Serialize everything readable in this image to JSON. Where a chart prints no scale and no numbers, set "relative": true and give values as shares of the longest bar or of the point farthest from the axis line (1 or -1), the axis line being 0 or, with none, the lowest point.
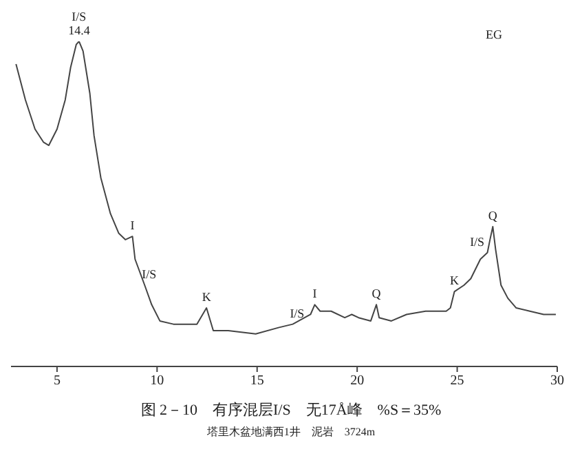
{
  "chart_data": {
    "type": "line",
    "relative": true,
    "title": "图 2－10　有序混层I/S　无17Å峰　%S＝35%",
    "subtitle": "塔里木盆地满西1井　泥岩　3724m",
    "xlim": [
      2.7,
      30
    ],
    "xticks": [
      5,
      10,
      15,
      20,
      25,
      30
    ],
    "tick_labels": "x",
    "grid": false,
    "series": [
      {
        "color": "#444444",
        "x": [
          2.95,
          3.42,
          3.9,
          4.32,
          4.59,
          5.0,
          5.41,
          5.68,
          5.96,
          6.1,
          6.3,
          6.64,
          6.85,
          7.19,
          7.67,
          8.08,
          8.42,
          8.77,
          8.9,
          9.38,
          9.73,
          10.14,
          10.82,
          11.99,
          12.47,
          12.81,
          13.56,
          14.93,
          16.1,
          16.78,
          17.67,
          17.88,
          18.15,
          18.7,
          19.38,
          19.73,
          20.07,
          20.68,
          20.96,
          21.1,
          21.71,
          22.47,
          23.42,
          24.45,
          24.66,
          24.86,
          25.34,
          25.68,
          26.16,
          26.51,
          26.64,
          26.78,
          26.92,
          27.19,
          27.53,
          27.95,
          28.63,
          29.32,
          29.93
        ],
        "values": [
          0.93,
          0.82,
          0.73,
          0.69,
          0.68,
          0.73,
          0.82,
          0.92,
          0.99,
          1.0,
          0.97,
          0.84,
          0.71,
          0.58,
          0.47,
          0.41,
          0.39,
          0.4,
          0.33,
          0.25,
          0.19,
          0.14,
          0.13,
          0.13,
          0.18,
          0.11,
          0.11,
          0.1,
          0.12,
          0.13,
          0.16,
          0.19,
          0.17,
          0.17,
          0.15,
          0.16,
          0.15,
          0.14,
          0.19,
          0.15,
          0.14,
          0.16,
          0.17,
          0.17,
          0.18,
          0.23,
          0.25,
          0.27,
          0.33,
          0.35,
          0.39,
          0.43,
          0.36,
          0.25,
          0.21,
          0.18,
          0.17,
          0.16,
          0.16
        ]
      }
    ],
    "annotations": [
      {
        "text": "I/S\n14.4",
        "x": 6.1,
        "y": 1.0
      },
      {
        "text": "I",
        "x": 8.77,
        "y": 0.4
      },
      {
        "text": "I/S",
        "x": 9.6,
        "y": 0.25
      },
      {
        "text": "K",
        "x": 12.47,
        "y": 0.18
      },
      {
        "text": "I/S",
        "x": 17.0,
        "y": 0.13
      },
      {
        "text": "I",
        "x": 17.88,
        "y": 0.19
      },
      {
        "text": "Q",
        "x": 20.96,
        "y": 0.19
      },
      {
        "text": "K",
        "x": 24.86,
        "y": 0.23
      },
      {
        "text": "I/S",
        "x": 26.0,
        "y": 0.35
      },
      {
        "text": "Q",
        "x": 26.78,
        "y": 0.43
      },
      "EG"
    ]
  }
}
